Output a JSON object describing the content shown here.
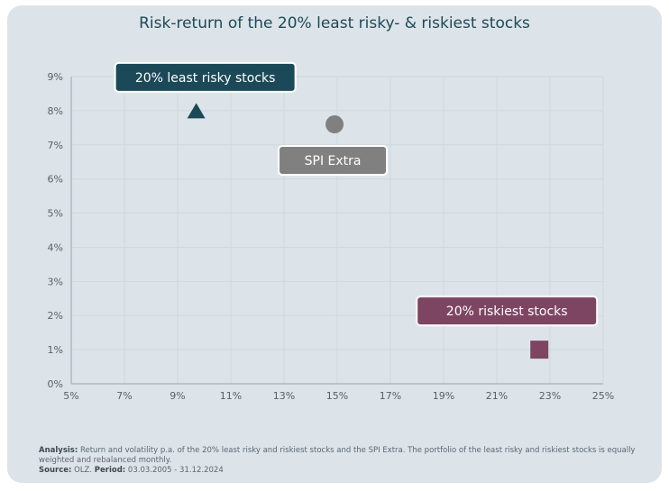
{
  "chart_data": {
    "type": "scatter",
    "title": "Risk-return of the 20% least risky- & riskiest stocks",
    "xlabel": "",
    "ylabel": "",
    "xlim": [
      5,
      25
    ],
    "ylim": [
      0,
      9
    ],
    "x_ticks": [
      "5%",
      "7%",
      "9%",
      "11%",
      "13%",
      "15%",
      "17%",
      "19%",
      "21%",
      "23%",
      "25%"
    ],
    "y_ticks": [
      "0%",
      "1%",
      "2%",
      "3%",
      "4%",
      "5%",
      "6%",
      "7%",
      "8%",
      "9%"
    ],
    "grid": true,
    "series": [
      {
        "name": "20% least risky stocks",
        "x": 9.7,
        "y": 8.0,
        "marker": "triangle",
        "color": "#1b4957"
      },
      {
        "name": "SPI Extra",
        "x": 14.9,
        "y": 7.6,
        "marker": "circle",
        "color": "#808080"
      },
      {
        "name": "20% riskiest stocks",
        "x": 22.6,
        "y": 1.0,
        "marker": "square",
        "color": "#7e4563"
      }
    ]
  },
  "footer": {
    "analysis_label": "Analysis:",
    "analysis_text": "Return and volatility p.a. of the 20% least risky and riskiest stocks and the SPI Extra. The portfolio of the least risky and riskiest stocks is equally weighted and rebalanced monthly.",
    "source_label": "Source:",
    "source_text": "OLZ.",
    "period_label": "Period:",
    "period_text": "03.03.2005 - 31.12.2024"
  }
}
